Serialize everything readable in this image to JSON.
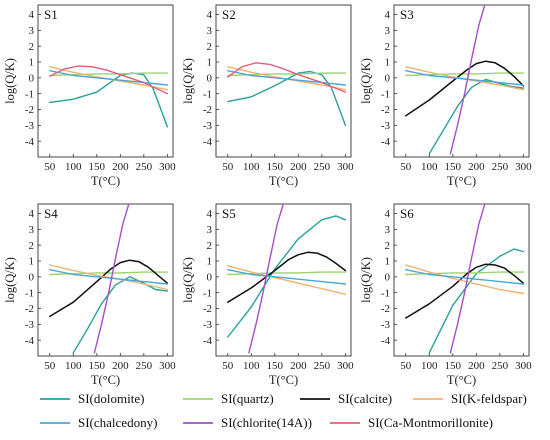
{
  "chart_data": [
    {
      "type": "line",
      "title": "S1",
      "xlabel": "T(°C)",
      "ylabel": "log(Q/K)",
      "xlim": [
        25,
        312
      ],
      "ylim": [
        -5,
        4.6
      ],
      "xticks": [
        50,
        100,
        150,
        200,
        250,
        300
      ],
      "yticks": [
        -4,
        -3,
        -2,
        -1,
        0,
        1,
        2,
        3,
        4
      ],
      "series": [
        {
          "name": "SI(dolomite)",
          "x": [
            50,
            100,
            150,
            200,
            225,
            250,
            270,
            290,
            300
          ],
          "y": [
            -1.55,
            -1.35,
            -0.9,
            0.15,
            0.3,
            0.2,
            -0.7,
            -2.3,
            -3.1
          ]
        },
        {
          "name": "SI(quartz)",
          "x": [
            50,
            100,
            150,
            200,
            250,
            300
          ],
          "y": [
            0.15,
            0.2,
            0.25,
            0.25,
            0.3,
            0.3
          ]
        },
        {
          "name": "SI(K-feldspar)",
          "x": [
            50,
            100,
            150,
            200,
            250,
            300
          ],
          "y": [
            0.7,
            0.35,
            0.05,
            -0.2,
            -0.45,
            -0.75
          ]
        },
        {
          "name": "SI(chalcedony)",
          "x": [
            50,
            100,
            150,
            200,
            250,
            300
          ],
          "y": [
            0.45,
            0.15,
            0,
            -0.15,
            -0.3,
            -0.45
          ]
        },
        {
          "name": "SI(Ca-Montmorillonite)",
          "x": [
            50,
            80,
            110,
            140,
            170,
            200,
            250,
            300
          ],
          "y": [
            0.1,
            0.55,
            0.75,
            0.7,
            0.5,
            0.2,
            -0.3,
            -1
          ]
        }
      ]
    },
    {
      "type": "line",
      "title": "S2",
      "xlabel": "T(°C)",
      "ylabel": "log(Q/K)",
      "xlim": [
        25,
        312
      ],
      "ylim": [
        -5,
        4.6
      ],
      "xticks": [
        50,
        100,
        150,
        200,
        250,
        300
      ],
      "yticks": [
        -4,
        -3,
        -2,
        -1,
        0,
        1,
        2,
        3,
        4
      ],
      "series": [
        {
          "name": "SI(dolomite)",
          "x": [
            50,
            100,
            150,
            200,
            225,
            250,
            270,
            290,
            300
          ],
          "y": [
            -1.5,
            -1.2,
            -0.5,
            0.3,
            0.4,
            0.2,
            -0.6,
            -2.2,
            -3
          ]
        },
        {
          "name": "SI(quartz)",
          "x": [
            50,
            100,
            150,
            200,
            250,
            300
          ],
          "y": [
            0.15,
            0.2,
            0.25,
            0.25,
            0.3,
            0.3
          ]
        },
        {
          "name": "SI(K-feldspar)",
          "x": [
            50,
            100,
            150,
            200,
            250,
            300
          ],
          "y": [
            0.7,
            0.35,
            0.05,
            -0.2,
            -0.45,
            -0.75
          ]
        },
        {
          "name": "SI(chalcedony)",
          "x": [
            50,
            100,
            150,
            200,
            250,
            300
          ],
          "y": [
            0.45,
            0.15,
            0,
            -0.15,
            -0.3,
            -0.45
          ]
        },
        {
          "name": "SI(Ca-Montmorillonite)",
          "x": [
            50,
            80,
            110,
            140,
            170,
            200,
            250,
            300
          ],
          "y": [
            0.05,
            0.7,
            0.95,
            0.85,
            0.55,
            0.2,
            -0.3,
            -0.9
          ]
        }
      ]
    },
    {
      "type": "line",
      "title": "S3",
      "xlabel": "T(°C)",
      "ylabel": "log(Q/K)",
      "xlim": [
        25,
        312
      ],
      "ylim": [
        -5,
        4.6
      ],
      "xticks": [
        50,
        100,
        150,
        200,
        250,
        300
      ],
      "yticks": [
        -4,
        -3,
        -2,
        -1,
        0,
        1,
        2,
        3,
        4
      ],
      "series": [
        {
          "name": "SI(dolomite)",
          "x": [
            100,
            130,
            160,
            190,
            220,
            250,
            275,
            300
          ],
          "y": [
            -4.8,
            -3.3,
            -1.8,
            -0.6,
            -0.1,
            -0.35,
            -0.55,
            -0.65
          ]
        },
        {
          "name": "SI(quartz)",
          "x": [
            50,
            100,
            150,
            200,
            250,
            300
          ],
          "y": [
            0.15,
            0.2,
            0.25,
            0.25,
            0.3,
            0.3
          ]
        },
        {
          "name": "SI(calcite)",
          "x": [
            50,
            100,
            150,
            180,
            200,
            220,
            240,
            260,
            280,
            300
          ],
          "y": [
            -2.4,
            -1.4,
            -0.2,
            0.5,
            0.9,
            1.05,
            0.95,
            0.6,
            0.1,
            -0.5
          ]
        },
        {
          "name": "SI(K-feldspar)",
          "x": [
            50,
            100,
            150,
            200,
            250,
            300
          ],
          "y": [
            0.7,
            0.35,
            0.05,
            -0.2,
            -0.45,
            -0.75
          ]
        },
        {
          "name": "SI(chalcedony)",
          "x": [
            50,
            100,
            150,
            200,
            250,
            300
          ],
          "y": [
            0.45,
            0.15,
            0,
            -0.15,
            -0.3,
            -0.45
          ]
        },
        {
          "name": "SI(chlorite(14A))",
          "x": [
            145,
            160,
            175,
            190,
            205,
            218
          ],
          "y": [
            -4.8,
            -3,
            -1,
            1.2,
            3.3,
            4.6
          ]
        }
      ]
    },
    {
      "type": "line",
      "title": "S4",
      "xlabel": "T(°C)",
      "ylabel": "log(Q/K)",
      "xlim": [
        25,
        312
      ],
      "ylim": [
        -5,
        4.6
      ],
      "xticks": [
        50,
        100,
        150,
        200,
        250,
        300
      ],
      "yticks": [
        -4,
        -3,
        -2,
        -1,
        0,
        1,
        2,
        3,
        4
      ],
      "series": [
        {
          "name": "SI(dolomite)",
          "x": [
            100,
            130,
            160,
            190,
            220,
            250,
            275,
            300
          ],
          "y": [
            -4.8,
            -3.3,
            -1.7,
            -0.5,
            0,
            -0.4,
            -0.8,
            -0.9
          ]
        },
        {
          "name": "SI(quartz)",
          "x": [
            50,
            100,
            150,
            200,
            250,
            300
          ],
          "y": [
            0.15,
            0.2,
            0.25,
            0.25,
            0.3,
            0.3
          ]
        },
        {
          "name": "SI(calcite)",
          "x": [
            50,
            100,
            150,
            180,
            200,
            220,
            240,
            260,
            280,
            300
          ],
          "y": [
            -2.5,
            -1.6,
            -0.3,
            0.5,
            0.9,
            1.05,
            0.95,
            0.6,
            0.1,
            -0.4
          ]
        },
        {
          "name": "SI(K-feldspar)",
          "x": [
            50,
            100,
            150,
            200,
            250,
            300
          ],
          "y": [
            0.75,
            0.4,
            0.1,
            -0.15,
            -0.45,
            -0.8
          ]
        },
        {
          "name": "SI(chalcedony)",
          "x": [
            50,
            100,
            150,
            200,
            250,
            300
          ],
          "y": [
            0.45,
            0.15,
            0,
            -0.15,
            -0.3,
            -0.45
          ]
        },
        {
          "name": "SI(chlorite(14A))",
          "x": [
            145,
            160,
            175,
            190,
            205,
            218
          ],
          "y": [
            -4.8,
            -3,
            -1,
            1.2,
            3.3,
            4.6
          ]
        }
      ]
    },
    {
      "type": "line",
      "title": "S5",
      "xlabel": "T(°C)",
      "ylabel": "log(Q/K)",
      "xlim": [
        25,
        312
      ],
      "ylim": [
        -5,
        4.6
      ],
      "xticks": [
        50,
        100,
        150,
        200,
        250,
        300
      ],
      "yticks": [
        -4,
        -3,
        -2,
        -1,
        0,
        1,
        2,
        3,
        4
      ],
      "series": [
        {
          "name": "SI(dolomite)",
          "x": [
            50,
            100,
            150,
            200,
            250,
            280,
            300
          ],
          "y": [
            -3.8,
            -1.9,
            0.5,
            2.4,
            3.6,
            3.85,
            3.6
          ]
        },
        {
          "name": "SI(quartz)",
          "x": [
            50,
            100,
            150,
            200,
            250,
            300
          ],
          "y": [
            0.15,
            0.2,
            0.25,
            0.25,
            0.3,
            0.3
          ]
        },
        {
          "name": "SI(calcite)",
          "x": [
            50,
            100,
            150,
            180,
            200,
            220,
            240,
            260,
            280,
            300
          ],
          "y": [
            -1.6,
            -0.7,
            0.4,
            1.1,
            1.4,
            1.55,
            1.5,
            1.25,
            0.85,
            0.4
          ]
        },
        {
          "name": "SI(K-feldspar)",
          "x": [
            50,
            100,
            150,
            200,
            250,
            300
          ],
          "y": [
            0.7,
            0.3,
            -0.05,
            -0.4,
            -0.75,
            -1.1
          ]
        },
        {
          "name": "SI(chalcedony)",
          "x": [
            50,
            100,
            150,
            200,
            250,
            300
          ],
          "y": [
            0.45,
            0.15,
            0,
            -0.15,
            -0.3,
            -0.45
          ]
        },
        {
          "name": "SI(chlorite(14A))",
          "x": [
            95,
            110,
            125,
            140,
            155,
            168
          ],
          "y": [
            -4.8,
            -3,
            -1,
            1.2,
            3.3,
            4.6
          ]
        }
      ]
    },
    {
      "type": "line",
      "title": "S6",
      "xlabel": "T(°C)",
      "ylabel": "log(Q/K)",
      "xlim": [
        25,
        312
      ],
      "ylim": [
        -5,
        4.6
      ],
      "xticks": [
        50,
        100,
        150,
        200,
        250,
        300
      ],
      "yticks": [
        -4,
        -3,
        -2,
        -1,
        0,
        1,
        2,
        3,
        4
      ],
      "series": [
        {
          "name": "SI(dolomite)",
          "x": [
            100,
            150,
            200,
            250,
            280,
            300
          ],
          "y": [
            -4.8,
            -1.8,
            0.2,
            1.3,
            1.75,
            1.6
          ]
        },
        {
          "name": "SI(quartz)",
          "x": [
            50,
            100,
            150,
            200,
            250,
            300
          ],
          "y": [
            0.15,
            0.2,
            0.25,
            0.25,
            0.3,
            0.3
          ]
        },
        {
          "name": "SI(calcite)",
          "x": [
            50,
            100,
            150,
            180,
            200,
            220,
            240,
            260,
            280,
            300
          ],
          "y": [
            -2.6,
            -1.7,
            -0.6,
            0.2,
            0.6,
            0.8,
            0.75,
            0.55,
            0.1,
            -0.4
          ]
        },
        {
          "name": "SI(K-feldspar)",
          "x": [
            50,
            100,
            150,
            200,
            250,
            300
          ],
          "y": [
            0.75,
            0.3,
            -0.1,
            -0.45,
            -0.8,
            -1.05
          ]
        },
        {
          "name": "SI(chalcedony)",
          "x": [
            50,
            100,
            150,
            200,
            250,
            300
          ],
          "y": [
            0.45,
            0.15,
            0,
            -0.15,
            -0.3,
            -0.45
          ]
        },
        {
          "name": "SI(chlorite(14A))",
          "x": [
            145,
            160,
            175,
            190,
            205,
            218
          ],
          "y": [
            -4.8,
            -3,
            -1,
            1.2,
            3.3,
            4.6
          ]
        }
      ]
    }
  ],
  "legend": {
    "items": [
      {
        "name": "SI(dolomite)",
        "color": "#2aa198"
      },
      {
        "name": "SI(quartz)",
        "color": "#9bd46c"
      },
      {
        "name": "SI(calcite)",
        "color": "#111111"
      },
      {
        "name": "SI(K-feldspar)",
        "color": "#f2b26b"
      },
      {
        "name": "SI(chalcedony)",
        "color": "#4aa6dd"
      },
      {
        "name": "SI(chlorite(14A))",
        "color": "#a64fc8"
      },
      {
        "name": "SI(Ca-Montmorillonite)",
        "color": "#e0607a"
      }
    ]
  }
}
